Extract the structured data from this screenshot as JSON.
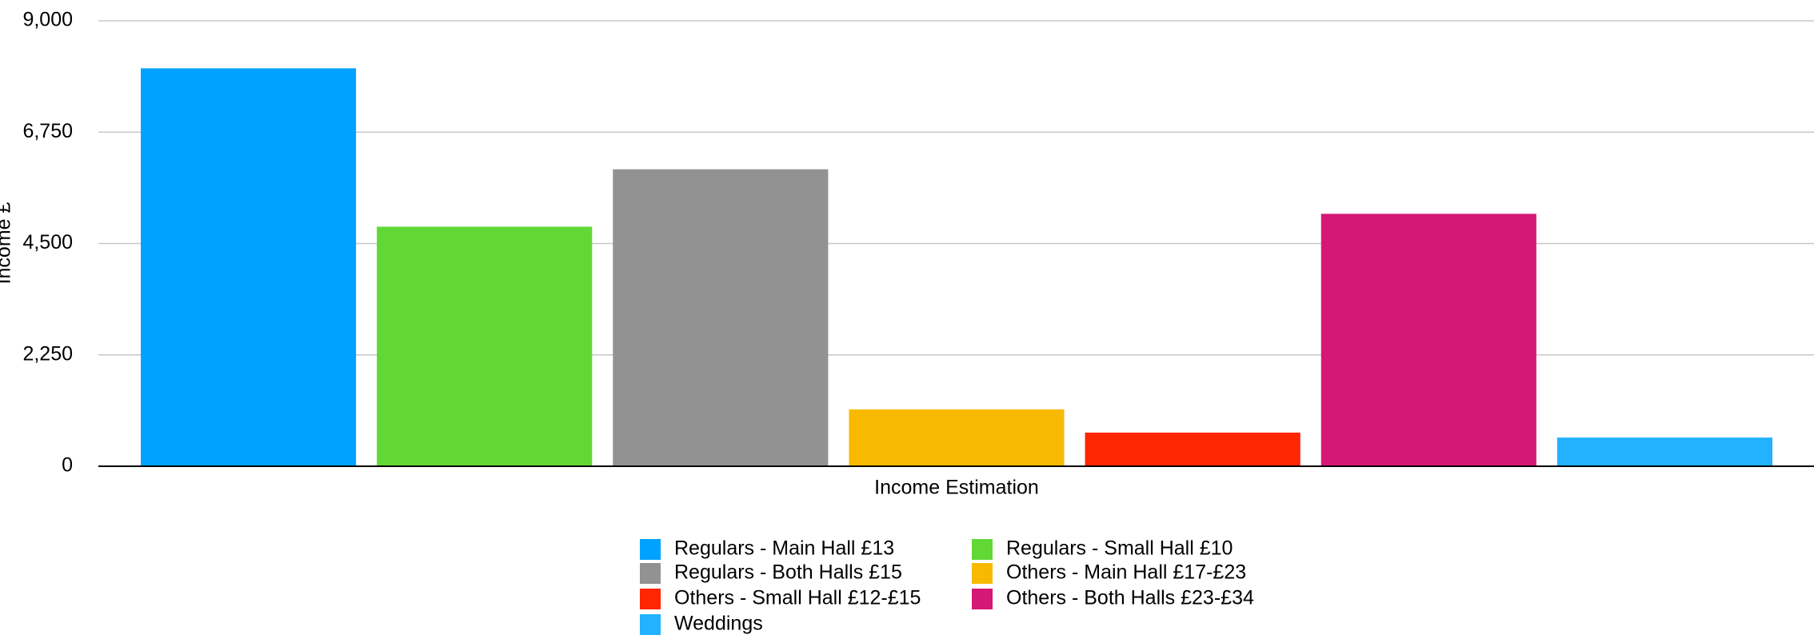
{
  "chart_data": {
    "type": "bar",
    "x_label": "Income Estimation",
    "y_label": "Income £",
    "categories": [
      "Income Estimation"
    ],
    "series": [
      {
        "name": "Regulars - Main Hall £13",
        "color": "#00a2ff",
        "values": [
          8040
        ]
      },
      {
        "name": "Regulars - Small Hall £10",
        "color": "#61d836",
        "values": [
          4840
        ]
      },
      {
        "name": "Regulars - Both Halls £15",
        "color": "#929292",
        "values": [
          6000
        ]
      },
      {
        "name": "Others - Main Hall £17-£23",
        "color": "#f8ba00",
        "values": [
          1150
        ]
      },
      {
        "name": "Others - Small Hall £12-£15",
        "color": "#ff2600",
        "values": [
          680
        ]
      },
      {
        "name": "Others - Both Halls £23-£34",
        "color": "#d41876",
        "values": [
          5100
        ]
      },
      {
        "name": "Weddings",
        "color": "#22b2ff",
        "values": [
          580
        ]
      }
    ],
    "ylim": [
      0,
      9000
    ],
    "yticks": [
      0,
      {
        "value": 2250,
        "label": "2,250"
      },
      {
        "value": 4500,
        "label": "4,500"
      },
      {
        "value": 6750,
        "label": "6,750"
      },
      {
        "value": 9000,
        "label": "9,000"
      }
    ],
    "grid": true,
    "legend": "bottom"
  }
}
